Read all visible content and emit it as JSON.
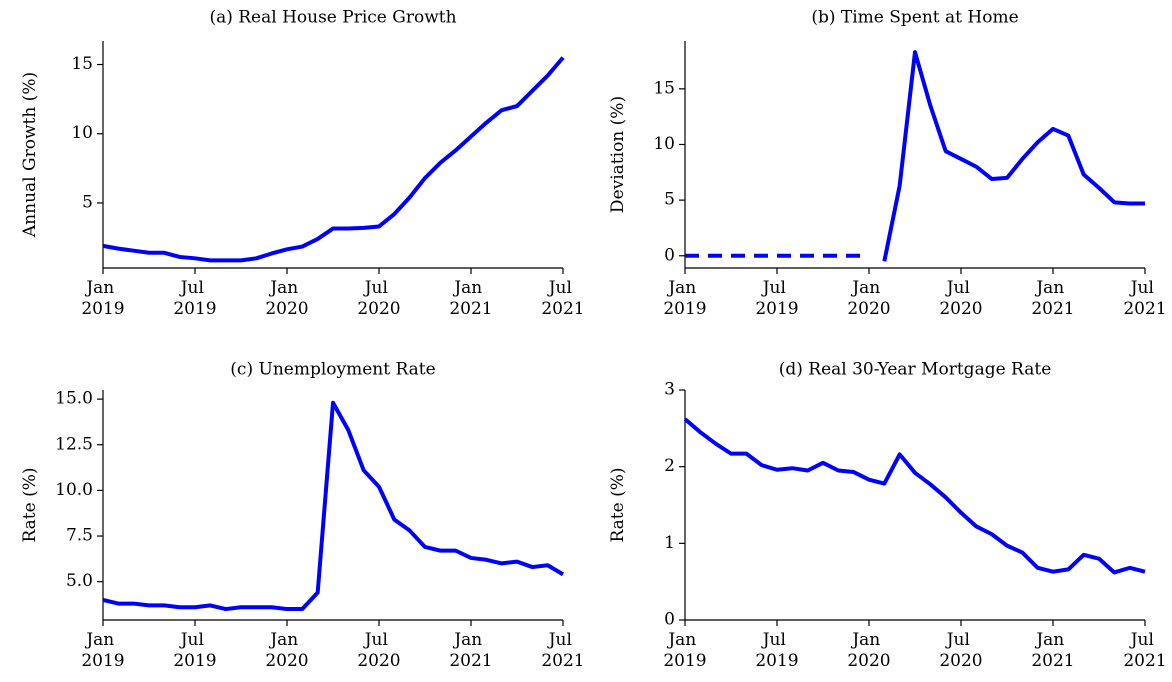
{
  "chart_data": [
    {
      "type": "line",
      "title": "(a) Real House Price Growth",
      "ylabel": "Annual Growth (%)",
      "x": [
        "2019-01",
        "2019-02",
        "2019-03",
        "2019-04",
        "2019-05",
        "2019-06",
        "2019-07",
        "2019-08",
        "2019-09",
        "2019-10",
        "2019-11",
        "2019-12",
        "2020-01",
        "2020-02",
        "2020-03",
        "2020-04",
        "2020-05",
        "2020-06",
        "2020-07",
        "2020-08",
        "2020-09",
        "2020-10",
        "2020-11",
        "2020-12",
        "2021-01",
        "2021-02",
        "2021-03",
        "2021-04",
        "2021-05",
        "2021-06",
        "2021-07"
      ],
      "series": [
        {
          "color": "#0000ff",
          "dash": false,
          "values": [
            1.9,
            1.7,
            1.55,
            1.4,
            1.4,
            1.1,
            1.0,
            0.85,
            0.85,
            0.85,
            1.0,
            1.35,
            1.65,
            1.85,
            2.4,
            3.15,
            3.15,
            3.2,
            3.3,
            4.2,
            5.4,
            6.8,
            7.9,
            8.8,
            9.8,
            10.8,
            11.7,
            12.0,
            13.1,
            14.2,
            15.5
          ]
        }
      ],
      "xlim": [
        "2019-01",
        "2021-07"
      ],
      "xticks": [
        {
          "value": "2019-01",
          "label": "Jan 2019"
        },
        {
          "value": "2019-07",
          "label": "Jul 2019"
        },
        {
          "value": "2020-01",
          "label": "Jan 2020"
        },
        {
          "value": "2020-07",
          "label": "Jul 2020"
        },
        {
          "value": "2021-01",
          "label": "Jan 2021"
        },
        {
          "value": "2021-07",
          "label": "Jul 2021"
        }
      ],
      "ylim": [
        0.3,
        16.7
      ],
      "yticks": [
        5,
        10,
        15
      ]
    },
    {
      "type": "line",
      "title": "(b) Time Spent at Home",
      "ylabel": "Deviation (%)",
      "x": [
        "2019-01",
        "2019-02",
        "2019-03",
        "2019-04",
        "2019-05",
        "2019-06",
        "2019-07",
        "2019-08",
        "2019-09",
        "2019-10",
        "2019-11",
        "2019-12",
        "2020-01",
        "2020-02",
        "2020-03",
        "2020-04",
        "2020-05",
        "2020-06",
        "2020-07",
        "2020-08",
        "2020-09",
        "2020-10",
        "2020-11",
        "2020-12",
        "2021-01",
        "2021-02",
        "2021-03",
        "2021-04",
        "2021-05",
        "2021-06",
        "2021-07"
      ],
      "series": [
        {
          "color": "#0000ff",
          "dash": true,
          "values": [
            0,
            0,
            0,
            0,
            0,
            0,
            0,
            0,
            0,
            0,
            0,
            0,
            0,
            null,
            null,
            null,
            null,
            null,
            null,
            null,
            null,
            null,
            null,
            null,
            null,
            null,
            null,
            null,
            null,
            null,
            null
          ]
        },
        {
          "color": "#0000ff",
          "dash": false,
          "values": [
            null,
            null,
            null,
            null,
            null,
            null,
            null,
            null,
            null,
            null,
            null,
            null,
            null,
            -0.5,
            6.3,
            18.3,
            13.5,
            9.4,
            8.7,
            8.0,
            6.9,
            7.0,
            8.7,
            10.2,
            11.4,
            10.8,
            7.3,
            6.1,
            4.8,
            4.7,
            4.7
          ]
        }
      ],
      "xlim": [
        "2019-01",
        "2021-07"
      ],
      "xticks": [
        {
          "value": "2019-01",
          "label": "Jan 2019"
        },
        {
          "value": "2019-07",
          "label": "Jul 2019"
        },
        {
          "value": "2020-01",
          "label": "Jan 2020"
        },
        {
          "value": "2020-07",
          "label": "Jul 2020"
        },
        {
          "value": "2021-01",
          "label": "Jan 2021"
        },
        {
          "value": "2021-07",
          "label": "Jul 2021"
        }
      ],
      "ylim": [
        -1.1,
        19.3
      ],
      "yticks": [
        0,
        5,
        10,
        15
      ]
    },
    {
      "type": "line",
      "title": "(c) Unemployment Rate",
      "ylabel": "Rate (%)",
      "x": [
        "2019-01",
        "2019-02",
        "2019-03",
        "2019-04",
        "2019-05",
        "2019-06",
        "2019-07",
        "2019-08",
        "2019-09",
        "2019-10",
        "2019-11",
        "2019-12",
        "2020-01",
        "2020-02",
        "2020-03",
        "2020-04",
        "2020-05",
        "2020-06",
        "2020-07",
        "2020-08",
        "2020-09",
        "2020-10",
        "2020-11",
        "2020-12",
        "2021-01",
        "2021-02",
        "2021-03",
        "2021-04",
        "2021-05",
        "2021-06",
        "2021-07"
      ],
      "series": [
        {
          "color": "#0000ff",
          "dash": false,
          "values": [
            4.0,
            3.8,
            3.8,
            3.7,
            3.7,
            3.6,
            3.6,
            3.7,
            3.5,
            3.6,
            3.6,
            3.6,
            3.5,
            3.5,
            4.4,
            14.8,
            13.3,
            11.1,
            10.2,
            8.4,
            7.8,
            6.9,
            6.7,
            6.7,
            6.3,
            6.2,
            6.0,
            6.1,
            5.8,
            5.9,
            5.4
          ]
        }
      ],
      "xlim": [
        "2019-01",
        "2021-07"
      ],
      "xticks": [
        {
          "value": "2019-01",
          "label": "Jan 2019"
        },
        {
          "value": "2019-07",
          "label": "Jul 2019"
        },
        {
          "value": "2020-01",
          "label": "Jan 2020"
        },
        {
          "value": "2020-07",
          "label": "Jul 2020"
        },
        {
          "value": "2021-01",
          "label": "Jan 2021"
        },
        {
          "value": "2021-07",
          "label": "Jul 2021"
        }
      ],
      "ylim": [
        2.9,
        15.5
      ],
      "yticks": [
        {
          "value": 5,
          "label": "5.0"
        },
        {
          "value": 7.5,
          "label": "7.5"
        },
        {
          "value": 10,
          "label": "10.0"
        },
        {
          "value": 12.5,
          "label": "12.5"
        },
        {
          "value": 15,
          "label": "15.0"
        }
      ]
    },
    {
      "type": "line",
      "title": "(d) Real 30-Year Mortgage Rate",
      "ylabel": "Rate (%)",
      "x": [
        "2019-01",
        "2019-02",
        "2019-03",
        "2019-04",
        "2019-05",
        "2019-06",
        "2019-07",
        "2019-08",
        "2019-09",
        "2019-10",
        "2019-11",
        "2019-12",
        "2020-01",
        "2020-02",
        "2020-03",
        "2020-04",
        "2020-05",
        "2020-06",
        "2020-07",
        "2020-08",
        "2020-09",
        "2020-10",
        "2020-11",
        "2020-12",
        "2021-01",
        "2021-02",
        "2021-03",
        "2021-04",
        "2021-05",
        "2021-06",
        "2021-07"
      ],
      "series": [
        {
          "color": "#0000ff",
          "dash": false,
          "values": [
            2.62,
            2.45,
            2.3,
            2.17,
            2.17,
            2.02,
            1.96,
            1.98,
            1.95,
            2.05,
            1.95,
            1.93,
            1.83,
            1.78,
            2.16,
            1.92,
            1.77,
            1.6,
            1.4,
            1.22,
            1.12,
            0.97,
            0.88,
            0.68,
            0.63,
            0.66,
            0.85,
            0.8,
            0.62,
            0.68,
            0.63
          ]
        }
      ],
      "xlim": [
        "2019-01",
        "2021-07"
      ],
      "xticks": [
        {
          "value": "2019-01",
          "label": "Jan 2019"
        },
        {
          "value": "2019-07",
          "label": "Jul 2019"
        },
        {
          "value": "2020-01",
          "label": "Jan 2020"
        },
        {
          "value": "2020-07",
          "label": "Jul 2020"
        },
        {
          "value": "2021-01",
          "label": "Jan 2021"
        },
        {
          "value": "2021-07",
          "label": "Jul 2021"
        }
      ],
      "ylim": [
        0,
        3
      ],
      "yticks": [
        0,
        1,
        2,
        3
      ]
    }
  ]
}
